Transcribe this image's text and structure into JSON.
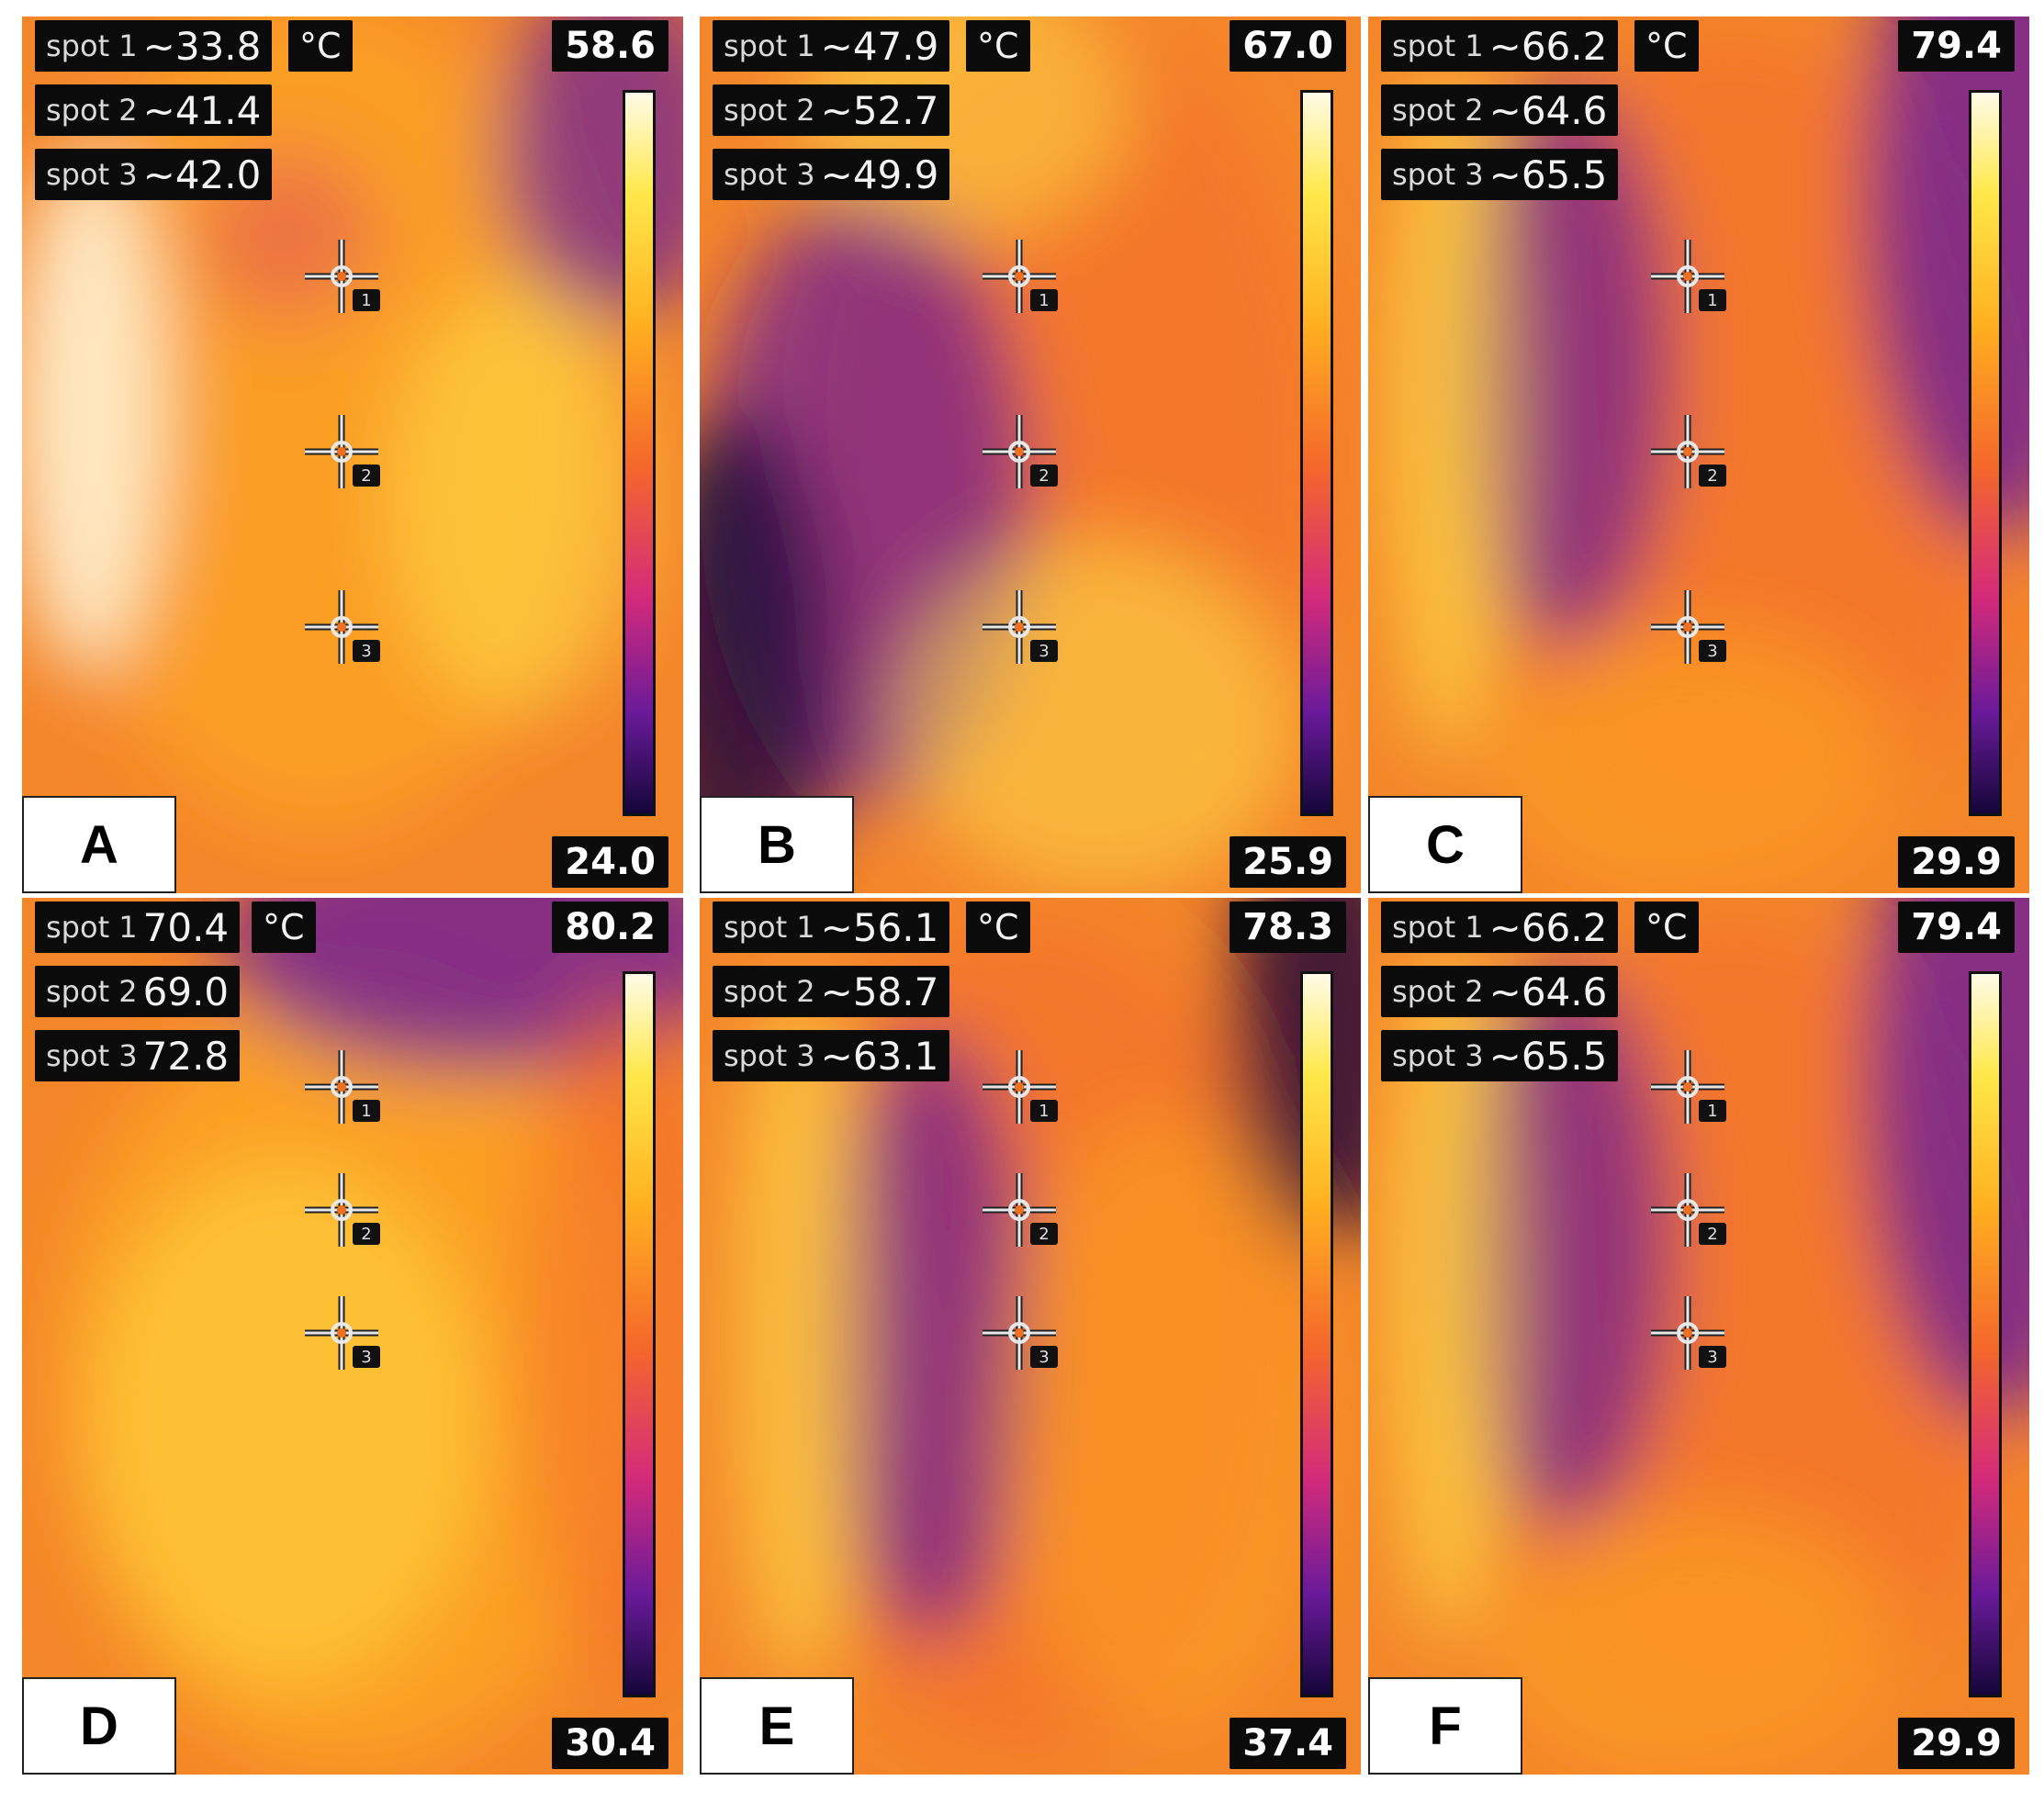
{
  "colors": {
    "background": "#ffffff",
    "label_bg": "#0b0b0b",
    "palette": [
      "#15063a",
      "#6a1a9a",
      "#d42a7a",
      "#f4672a",
      "#ffb020",
      "#ffe84a",
      "#fffbe8"
    ]
  },
  "unit": "°C",
  "panels": [
    {
      "letter": "A",
      "max": "58.6",
      "min": "24.0",
      "spots": [
        {
          "name": "spot 1",
          "value": "~33.8"
        },
        {
          "name": "spot 2",
          "value": "~41.4"
        },
        {
          "name": "spot 3",
          "value": "~42.0"
        }
      ]
    },
    {
      "letter": "B",
      "max": "67.0",
      "min": "25.9",
      "spots": [
        {
          "name": "spot 1",
          "value": "~47.9"
        },
        {
          "name": "spot 2",
          "value": "~52.7"
        },
        {
          "name": "spot 3",
          "value": "~49.9"
        }
      ]
    },
    {
      "letter": "C",
      "max": "79.4",
      "min": "29.9",
      "spots": [
        {
          "name": "spot 1",
          "value": "~66.2"
        },
        {
          "name": "spot 2",
          "value": "~64.6"
        },
        {
          "name": "spot 3",
          "value": "~65.5"
        }
      ]
    },
    {
      "letter": "D",
      "max": "80.2",
      "min": "30.4",
      "spots": [
        {
          "name": "spot 1",
          "value": "70.4"
        },
        {
          "name": "spot 2",
          "value": "69.0"
        },
        {
          "name": "spot 3",
          "value": "72.8"
        }
      ]
    },
    {
      "letter": "E",
      "max": "78.3",
      "min": "37.4",
      "spots": [
        {
          "name": "spot 1",
          "value": "~56.1"
        },
        {
          "name": "spot 2",
          "value": "~58.7"
        },
        {
          "name": "spot 3",
          "value": "~63.1"
        }
      ]
    },
    {
      "letter": "F",
      "max": "79.4",
      "min": "29.9",
      "spots": [
        {
          "name": "spot 1",
          "value": "~66.2"
        },
        {
          "name": "spot 2",
          "value": "~64.6"
        },
        {
          "name": "spot 3",
          "value": "~65.5"
        }
      ]
    }
  ]
}
